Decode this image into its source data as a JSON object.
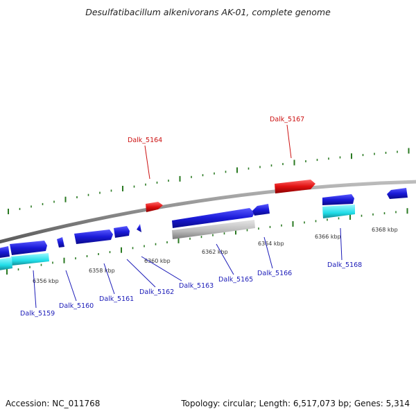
{
  "title": "Desulfatibacillum alkenivorans AK-01, complete genome",
  "footer": {
    "accession": "Accession: NC_011768",
    "summary": "Topology: circular; Length: 6,517,073 bp; Genes: 5,314"
  },
  "colors": {
    "forward_gene": "#1a1ad8",
    "reverse_gene": "#e01010",
    "rna": "#28e4ee",
    "pseudo": "#b8b8b8",
    "tick": "#2a7a22",
    "backbone": "#8a8a8a",
    "label_forward": "#1a1ab8",
    "label_reverse": "#cc1010"
  },
  "kbp_labels": [
    "6356 kbp",
    "6358 kbp",
    "6360 kbp",
    "6362 kbp",
    "6364 kbp",
    "6366 kbp",
    "6368 kbp"
  ],
  "gene_labels": [
    {
      "text": "Dalk_5159",
      "strand": "forward"
    },
    {
      "text": "Dalk_5160",
      "strand": "forward"
    },
    {
      "text": "Dalk_5161",
      "strand": "forward"
    },
    {
      "text": "Dalk_5162",
      "strand": "forward"
    },
    {
      "text": "Dalk_5163",
      "strand": "forward"
    },
    {
      "text": "Dalk_5165",
      "strand": "forward"
    },
    {
      "text": "Dalk_5166",
      "strand": "forward"
    },
    {
      "text": "Dalk_5168",
      "strand": "forward"
    },
    {
      "text": "Dalk_5164",
      "strand": "reverse"
    },
    {
      "text": "Dalk_5167",
      "strand": "reverse"
    }
  ]
}
